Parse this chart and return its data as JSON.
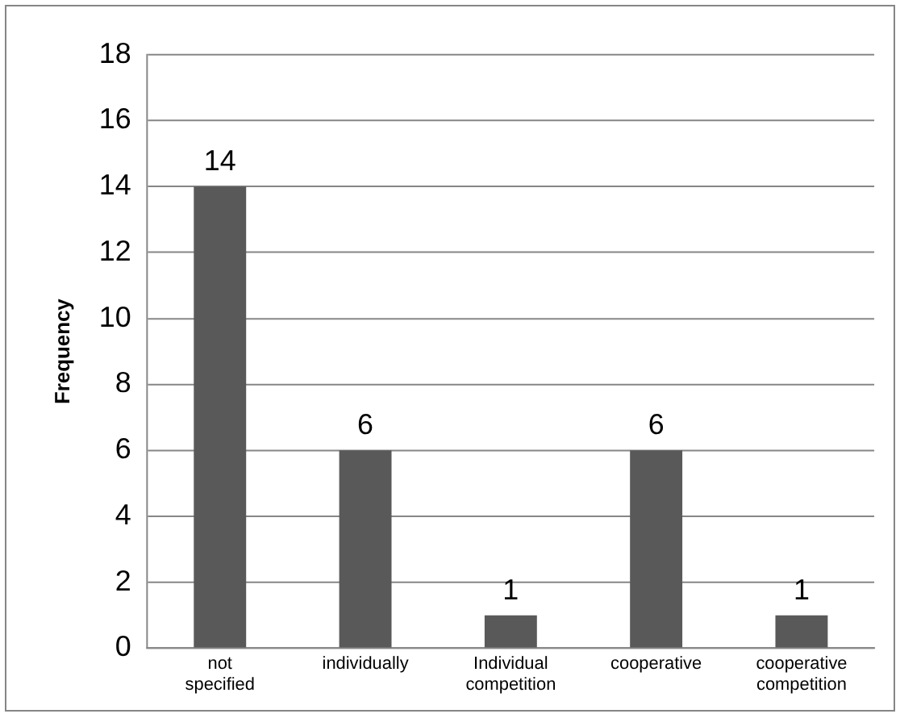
{
  "chart_data": {
    "type": "bar",
    "ylabel": "Frequency",
    "categories": [
      "not specified",
      "individually",
      "Individual competition",
      "cooperative",
      "cooperative competition"
    ],
    "values": [
      14,
      6,
      1,
      6,
      1
    ],
    "color": "#595959",
    "ylim": [
      0,
      18
    ],
    "yticks": [
      0,
      2,
      4,
      6,
      8,
      10,
      12,
      14,
      16,
      18
    ],
    "grid": "y",
    "data_labels": true,
    "legend": false
  }
}
